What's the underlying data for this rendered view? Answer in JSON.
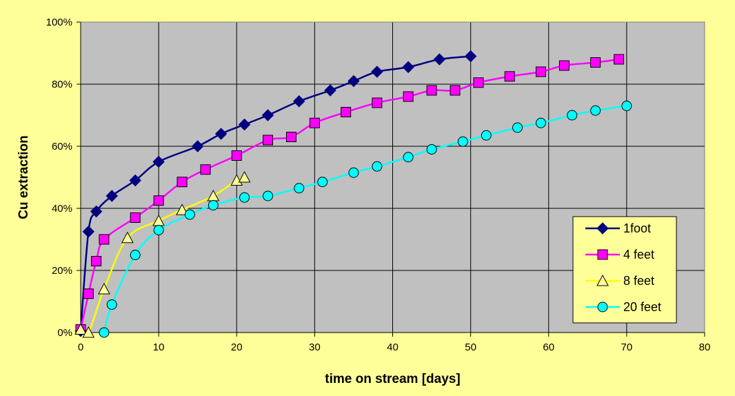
{
  "chart_data": {
    "type": "line",
    "title": "",
    "xlabel": "time on stream [days]",
    "ylabel": "Cu extraction",
    "xlim": [
      0,
      80
    ],
    "ylim": [
      0,
      100
    ],
    "x_ticks": [
      0,
      10,
      20,
      30,
      40,
      50,
      60,
      70,
      80
    ],
    "y_ticks": [
      0,
      20,
      40,
      60,
      80,
      100
    ],
    "x_tick_labels": [
      "0",
      "10",
      "20",
      "30",
      "40",
      "50",
      "60",
      "70",
      "80"
    ],
    "y_tick_labels": [
      "0%",
      "20%",
      "40%",
      "60%",
      "80%",
      "100%"
    ],
    "grid": true,
    "plot_background": "#C0C0C0",
    "page_background": "#FFFF99",
    "legend_position": "right",
    "series": [
      {
        "name": "1foot",
        "color": "#000080",
        "marker": "diamond",
        "marker_fill": "#000080",
        "x": [
          0,
          1,
          2,
          4,
          7,
          10,
          15,
          18,
          21,
          24,
          28,
          32,
          35,
          38,
          42,
          46,
          50
        ],
        "y": [
          0.5,
          32.5,
          39,
          44,
          49,
          55,
          60,
          64,
          67,
          70,
          74.5,
          78,
          81,
          84,
          85.5,
          88,
          89
        ]
      },
      {
        "name": "4 feet",
        "color": "#FF00FF",
        "marker": "square",
        "marker_fill": "#FF00FF",
        "x": [
          0,
          1,
          2,
          3,
          7,
          10,
          13,
          16,
          20,
          24,
          27,
          30,
          34,
          38,
          42,
          45,
          48,
          51,
          55,
          59,
          62,
          66,
          69
        ],
        "y": [
          1,
          12.5,
          23,
          30,
          37,
          42.5,
          48.5,
          52.5,
          57,
          62,
          63,
          67.5,
          71,
          74,
          76,
          78,
          78,
          80.5,
          82.5,
          84,
          86,
          87,
          88
        ]
      },
      {
        "name": "8 feet",
        "color": "#FFFF00",
        "marker": "triangle",
        "marker_fill": "#FFFF99",
        "x": [
          0,
          1,
          3,
          6,
          10,
          13,
          17,
          20,
          21
        ],
        "y": [
          1,
          0,
          14,
          30.5,
          36,
          39.5,
          44,
          49,
          50
        ]
      },
      {
        "name": "20 feet",
        "color": "#00FFFF",
        "marker": "circle",
        "marker_fill": "#00FFFF",
        "x": [
          3,
          4,
          7,
          10,
          14,
          17,
          21,
          24,
          28,
          31,
          35,
          38,
          42,
          45,
          49,
          52,
          56,
          59,
          63,
          66,
          70
        ],
        "y": [
          0,
          9,
          25,
          33,
          38,
          41,
          43.5,
          44,
          46.5,
          48.5,
          51.5,
          53.5,
          56.5,
          59,
          61.5,
          63.5,
          66,
          67.5,
          70,
          71.5,
          73
        ]
      }
    ]
  }
}
